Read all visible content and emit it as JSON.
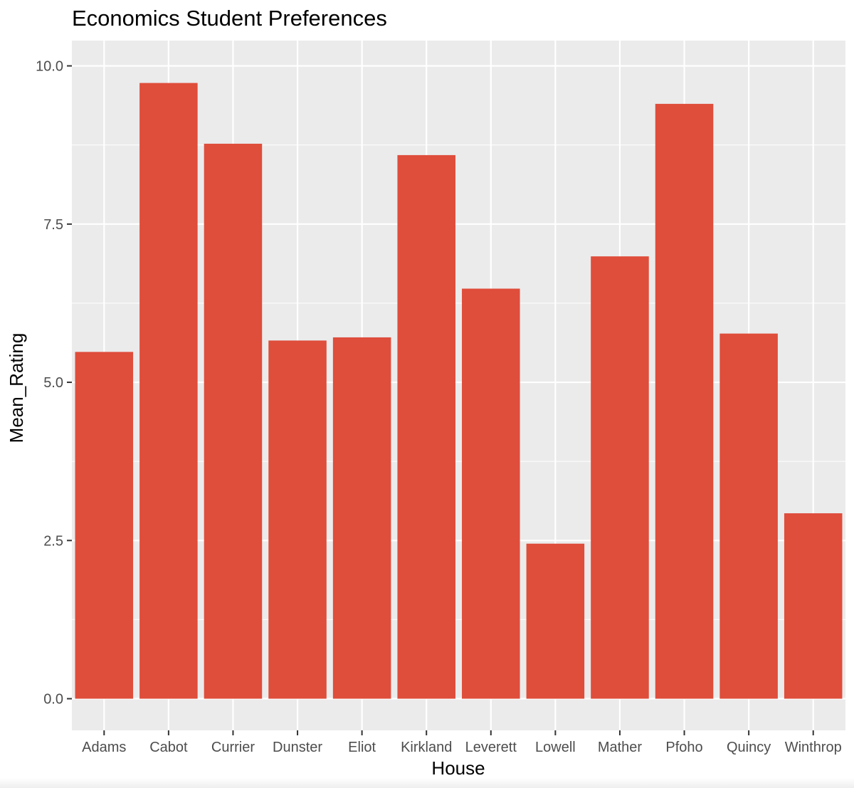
{
  "chart_data": {
    "type": "bar",
    "title": "Economics Student Preferences",
    "xlabel": "House",
    "ylabel": "Mean_Rating",
    "categories": [
      "Adams",
      "Cabot",
      "Currier",
      "Dunster",
      "Eliot",
      "Kirkland",
      "Leverett",
      "Lowell",
      "Mather",
      "Pfoho",
      "Quincy",
      "Winthrop"
    ],
    "values": [
      5.48,
      9.73,
      8.77,
      5.66,
      5.71,
      8.59,
      6.48,
      2.45,
      6.99,
      9.4,
      5.77,
      2.93
    ],
    "yticks": [
      "0.0",
      "2.5",
      "5.0",
      "7.5",
      "10.0"
    ],
    "ylim": [
      -0.5,
      10.4
    ],
    "grid": true,
    "legend": "none",
    "colors": {
      "bar": "#df4d3b",
      "panel": "#ebebeb",
      "grid": "#ffffff"
    }
  }
}
